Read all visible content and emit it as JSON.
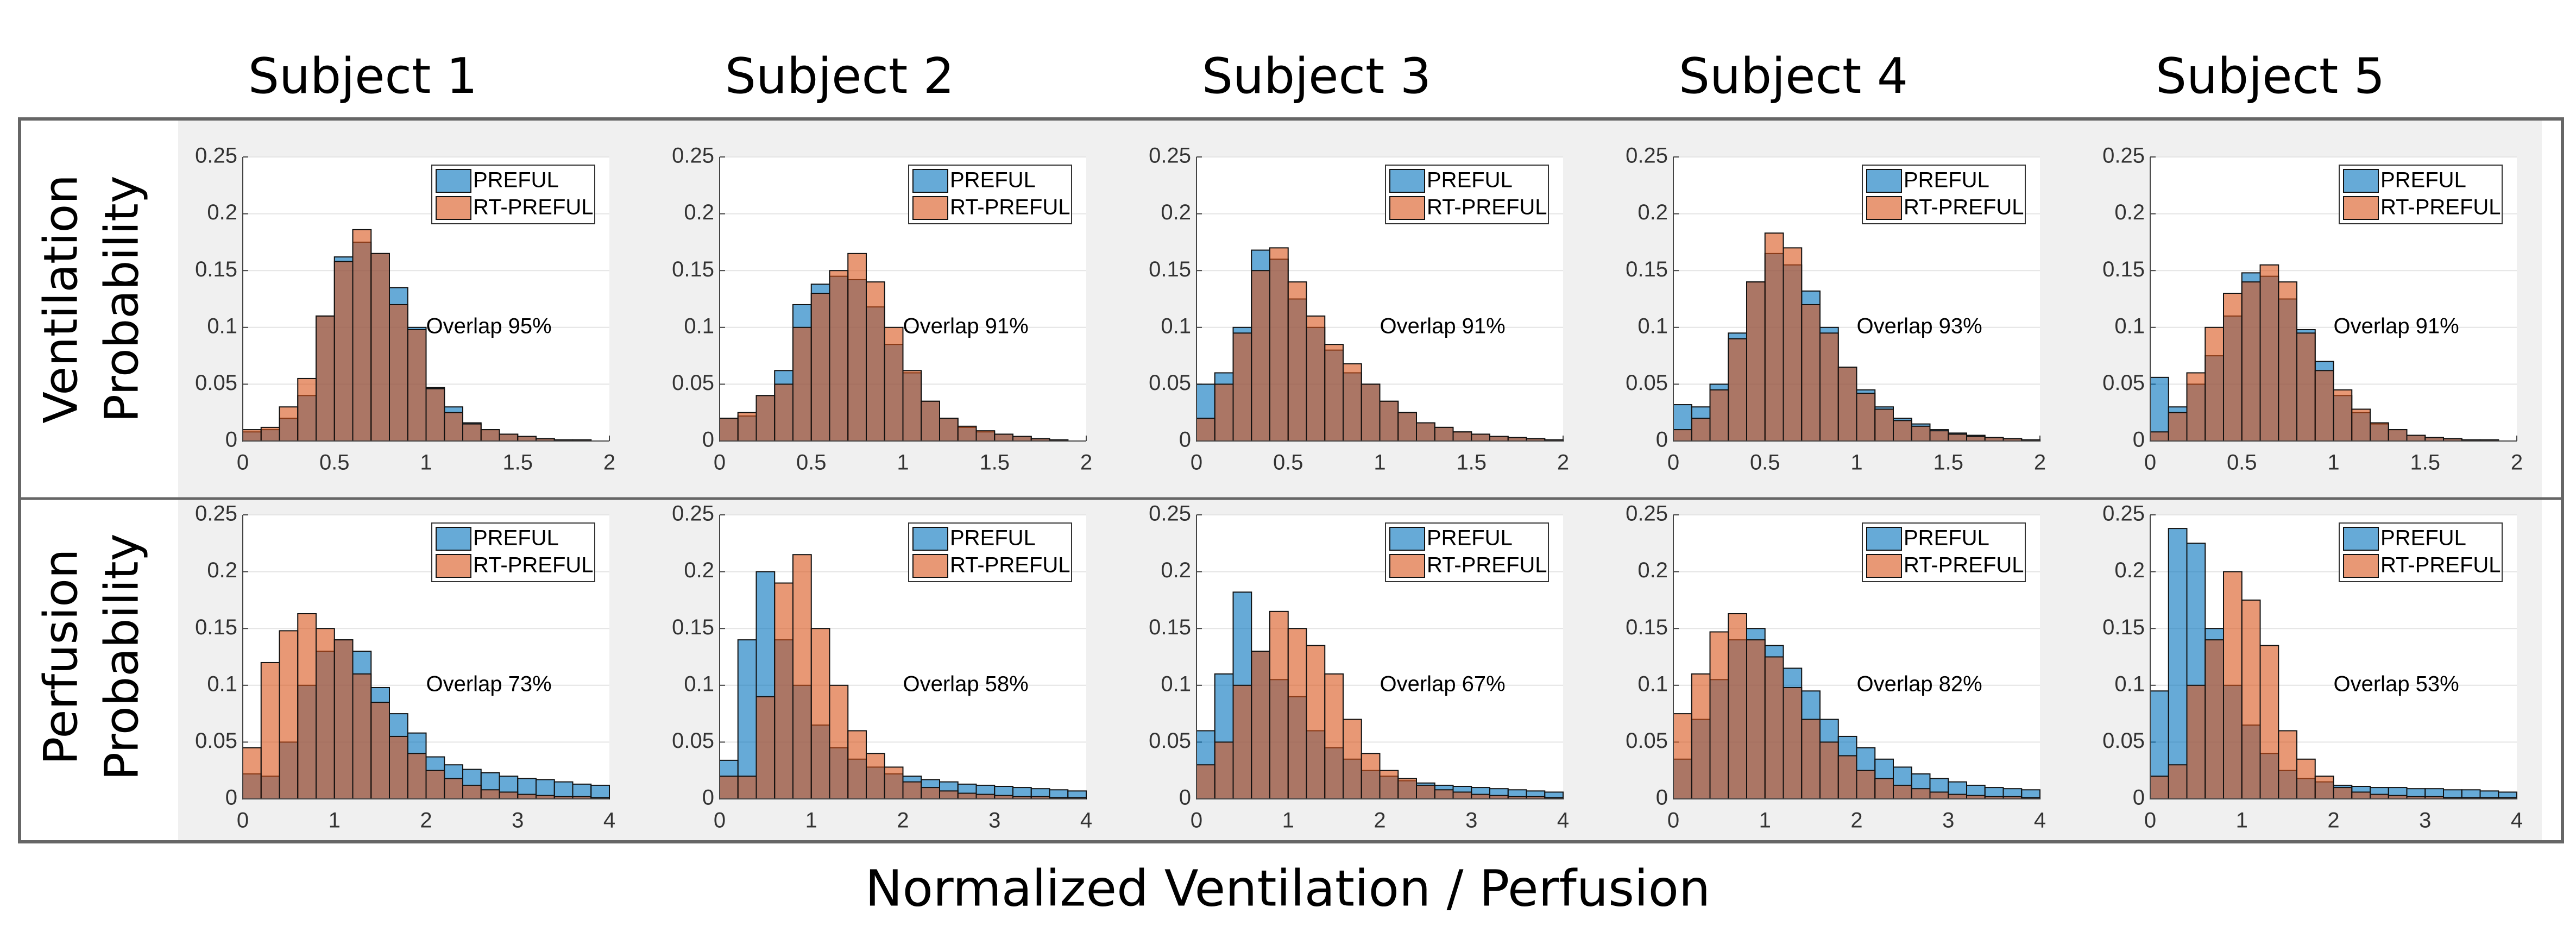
{
  "column_titles": [
    "Subject 1",
    "Subject 2",
    "Subject 3",
    "Subject 4",
    "Subject 5"
  ],
  "row_labels": [
    [
      "Ventilation",
      "Probability"
    ],
    [
      "Perfusion",
      "Probability"
    ]
  ],
  "xlabel": "Normalized Ventilation / Perfusion",
  "chart_data": [
    {
      "type": "histogram",
      "annotation": "Overlap 95%",
      "legend": "upper right",
      "grid": true,
      "bins": [
        0,
        0.1,
        0.2,
        0.3,
        0.4,
        0.5,
        0.6,
        0.7,
        0.8,
        0.9,
        1,
        1.1,
        1.2,
        1.3,
        1.4,
        1.5,
        1.6,
        1.7,
        1.8,
        1.9,
        2
      ],
      "xlim": [
        0,
        2
      ],
      "xticks": [
        0,
        0.5,
        1,
        1.5,
        2
      ],
      "ylim": [
        0,
        0.25
      ],
      "yticks": [
        0,
        0.05,
        0.1,
        0.15,
        0.2,
        0.25
      ],
      "series": [
        {
          "name": "PREFUL",
          "color": "#0072BD",
          "values": [
            0.008,
            0.01,
            0.02,
            0.04,
            0.11,
            0.162,
            0.175,
            0.165,
            0.135,
            0.1,
            0.047,
            0.03,
            0.016,
            0.01,
            0.006,
            0.004,
            0.002,
            0.001,
            0.001,
            0
          ]
        },
        {
          "name": "RT-PREFUL",
          "color": "#D95319",
          "values": [
            0.01,
            0.012,
            0.03,
            0.055,
            0.11,
            0.158,
            0.186,
            0.165,
            0.12,
            0.098,
            0.046,
            0.025,
            0.015,
            0.01,
            0.006,
            0.004,
            0.002,
            0.001,
            0.001,
            0
          ]
        }
      ]
    },
    {
      "type": "histogram",
      "annotation": "Overlap 91%",
      "legend": "upper right",
      "grid": true,
      "bins": [
        0,
        0.1,
        0.2,
        0.3,
        0.4,
        0.5,
        0.6,
        0.7,
        0.8,
        0.9,
        1,
        1.1,
        1.2,
        1.3,
        1.4,
        1.5,
        1.6,
        1.7,
        1.8,
        1.9,
        2
      ],
      "xlim": [
        0,
        2
      ],
      "xticks": [
        0,
        0.5,
        1,
        1.5,
        2
      ],
      "ylim": [
        0,
        0.25
      ],
      "yticks": [
        0,
        0.05,
        0.1,
        0.15,
        0.2,
        0.25
      ],
      "series": [
        {
          "name": "PREFUL",
          "color": "#0072BD",
          "values": [
            0.02,
            0.022,
            0.04,
            0.062,
            0.12,
            0.138,
            0.145,
            0.142,
            0.118,
            0.085,
            0.06,
            0.035,
            0.02,
            0.012,
            0.008,
            0.006,
            0.004,
            0.002,
            0.001,
            0
          ]
        },
        {
          "name": "RT-PREFUL",
          "color": "#D95319",
          "values": [
            0.02,
            0.025,
            0.04,
            0.05,
            0.1,
            0.13,
            0.15,
            0.165,
            0.14,
            0.1,
            0.062,
            0.035,
            0.02,
            0.013,
            0.009,
            0.006,
            0.004,
            0.002,
            0.001,
            0
          ]
        }
      ]
    },
    {
      "type": "histogram",
      "annotation": "Overlap 91%",
      "legend": "upper right",
      "grid": true,
      "bins": [
        0,
        0.1,
        0.2,
        0.3,
        0.4,
        0.5,
        0.6,
        0.7,
        0.8,
        0.9,
        1,
        1.1,
        1.2,
        1.3,
        1.4,
        1.5,
        1.6,
        1.7,
        1.8,
        1.9,
        2
      ],
      "xlim": [
        0,
        2
      ],
      "xticks": [
        0,
        0.5,
        1,
        1.5,
        2
      ],
      "ylim": [
        0,
        0.25
      ],
      "yticks": [
        0,
        0.05,
        0.1,
        0.15,
        0.2,
        0.25
      ],
      "series": [
        {
          "name": "PREFUL",
          "color": "#0072BD",
          "values": [
            0.05,
            0.06,
            0.1,
            0.168,
            0.16,
            0.125,
            0.1,
            0.08,
            0.06,
            0.05,
            0.035,
            0.025,
            0.016,
            0.012,
            0.008,
            0.006,
            0.004,
            0.003,
            0.002,
            0.001
          ]
        },
        {
          "name": "RT-PREFUL",
          "color": "#D95319",
          "values": [
            0.02,
            0.05,
            0.095,
            0.15,
            0.17,
            0.14,
            0.11,
            0.085,
            0.068,
            0.05,
            0.035,
            0.025,
            0.016,
            0.012,
            0.008,
            0.006,
            0.004,
            0.003,
            0.002,
            0.001
          ]
        }
      ]
    },
    {
      "type": "histogram",
      "annotation": "Overlap 93%",
      "legend": "upper right",
      "grid": true,
      "bins": [
        0,
        0.1,
        0.2,
        0.3,
        0.4,
        0.5,
        0.6,
        0.7,
        0.8,
        0.9,
        1,
        1.1,
        1.2,
        1.3,
        1.4,
        1.5,
        1.6,
        1.7,
        1.8,
        1.9,
        2
      ],
      "xlim": [
        0,
        2
      ],
      "xticks": [
        0,
        0.5,
        1,
        1.5,
        2
      ],
      "ylim": [
        0,
        0.25
      ],
      "yticks": [
        0,
        0.05,
        0.1,
        0.15,
        0.2,
        0.25
      ],
      "series": [
        {
          "name": "PREFUL",
          "color": "#0072BD",
          "values": [
            0.032,
            0.03,
            0.05,
            0.095,
            0.14,
            0.165,
            0.155,
            0.132,
            0.1,
            0.065,
            0.045,
            0.03,
            0.02,
            0.015,
            0.01,
            0.007,
            0.005,
            0.003,
            0.002,
            0.001
          ]
        },
        {
          "name": "RT-PREFUL",
          "color": "#D95319",
          "values": [
            0.01,
            0.02,
            0.045,
            0.09,
            0.14,
            0.183,
            0.17,
            0.12,
            0.095,
            0.065,
            0.042,
            0.028,
            0.018,
            0.013,
            0.009,
            0.006,
            0.004,
            0.003,
            0.002,
            0.001
          ]
        }
      ]
    },
    {
      "type": "histogram",
      "annotation": "Overlap 91%",
      "legend": "upper right",
      "grid": true,
      "bins": [
        0,
        0.1,
        0.2,
        0.3,
        0.4,
        0.5,
        0.6,
        0.7,
        0.8,
        0.9,
        1,
        1.1,
        1.2,
        1.3,
        1.4,
        1.5,
        1.6,
        1.7,
        1.8,
        1.9,
        2
      ],
      "xlim": [
        0,
        2
      ],
      "xticks": [
        0,
        0.5,
        1,
        1.5,
        2
      ],
      "ylim": [
        0,
        0.25
      ],
      "yticks": [
        0,
        0.05,
        0.1,
        0.15,
        0.2,
        0.25
      ],
      "series": [
        {
          "name": "PREFUL",
          "color": "#0072BD",
          "values": [
            0.056,
            0.03,
            0.05,
            0.075,
            0.11,
            0.148,
            0.145,
            0.125,
            0.098,
            0.07,
            0.04,
            0.025,
            0.015,
            0.01,
            0.005,
            0.003,
            0.002,
            0.001,
            0.001,
            0
          ]
        },
        {
          "name": "RT-PREFUL",
          "color": "#D95319",
          "values": [
            0.008,
            0.025,
            0.06,
            0.1,
            0.13,
            0.14,
            0.155,
            0.14,
            0.095,
            0.062,
            0.045,
            0.028,
            0.016,
            0.01,
            0.005,
            0.003,
            0.002,
            0.001,
            0.001,
            0
          ]
        }
      ]
    },
    {
      "type": "histogram",
      "annotation": "Overlap 73%",
      "legend": "upper right",
      "grid": true,
      "bins": [
        0,
        0.2,
        0.4,
        0.6,
        0.8,
        1,
        1.2,
        1.4,
        1.6,
        1.8,
        2,
        2.2,
        2.4,
        2.6,
        2.8,
        3,
        3.2,
        3.4,
        3.6,
        3.8,
        4
      ],
      "xlim": [
        0,
        4
      ],
      "xticks": [
        0,
        1,
        2,
        3,
        4
      ],
      "ylim": [
        0,
        0.25
      ],
      "yticks": [
        0,
        0.05,
        0.1,
        0.15,
        0.2,
        0.25
      ],
      "series": [
        {
          "name": "PREFUL",
          "color": "#0072BD",
          "values": [
            0.022,
            0.02,
            0.05,
            0.1,
            0.13,
            0.14,
            0.13,
            0.098,
            0.075,
            0.058,
            0.037,
            0.03,
            0.026,
            0.023,
            0.02,
            0.018,
            0.017,
            0.015,
            0.013,
            0.012
          ]
        },
        {
          "name": "RT-PREFUL",
          "color": "#D95319",
          "values": [
            0.045,
            0.12,
            0.148,
            0.163,
            0.15,
            0.14,
            0.11,
            0.085,
            0.055,
            0.04,
            0.025,
            0.018,
            0.012,
            0.008,
            0.006,
            0.004,
            0.003,
            0.002,
            0.002,
            0.001
          ]
        }
      ]
    },
    {
      "type": "histogram",
      "annotation": "Overlap 58%",
      "legend": "upper right",
      "grid": true,
      "bins": [
        0,
        0.2,
        0.4,
        0.6,
        0.8,
        1,
        1.2,
        1.4,
        1.6,
        1.8,
        2,
        2.2,
        2.4,
        2.6,
        2.8,
        3,
        3.2,
        3.4,
        3.6,
        3.8,
        4
      ],
      "xlim": [
        0,
        4
      ],
      "xticks": [
        0,
        1,
        2,
        3,
        4
      ],
      "ylim": [
        0,
        0.25
      ],
      "yticks": [
        0,
        0.05,
        0.1,
        0.15,
        0.2,
        0.25
      ],
      "series": [
        {
          "name": "PREFUL",
          "color": "#0072BD",
          "values": [
            0.034,
            0.14,
            0.2,
            0.14,
            0.1,
            0.065,
            0.045,
            0.035,
            0.028,
            0.022,
            0.02,
            0.017,
            0.015,
            0.013,
            0.012,
            0.011,
            0.01,
            0.009,
            0.008,
            0.007
          ]
        },
        {
          "name": "RT-PREFUL",
          "color": "#D95319",
          "values": [
            0.02,
            0.02,
            0.09,
            0.19,
            0.215,
            0.15,
            0.1,
            0.06,
            0.04,
            0.028,
            0.015,
            0.01,
            0.007,
            0.005,
            0.004,
            0.003,
            0.002,
            0.002,
            0.001,
            0.001
          ]
        }
      ]
    },
    {
      "type": "histogram",
      "annotation": "Overlap 67%",
      "legend": "upper right",
      "grid": true,
      "bins": [
        0,
        0.2,
        0.4,
        0.6,
        0.8,
        1,
        1.2,
        1.4,
        1.6,
        1.8,
        2,
        2.2,
        2.4,
        2.6,
        2.8,
        3,
        3.2,
        3.4,
        3.6,
        3.8,
        4
      ],
      "xlim": [
        0,
        4
      ],
      "xticks": [
        0,
        1,
        2,
        3,
        4
      ],
      "ylim": [
        0,
        0.25
      ],
      "yticks": [
        0,
        0.05,
        0.1,
        0.15,
        0.2,
        0.25
      ],
      "series": [
        {
          "name": "PREFUL",
          "color": "#0072BD",
          "values": [
            0.06,
            0.11,
            0.182,
            0.13,
            0.105,
            0.09,
            0.06,
            0.045,
            0.035,
            0.025,
            0.02,
            0.016,
            0.014,
            0.012,
            0.011,
            0.01,
            0.009,
            0.008,
            0.007,
            0.006
          ]
        },
        {
          "name": "RT-PREFUL",
          "color": "#D95319",
          "values": [
            0.03,
            0.05,
            0.1,
            0.13,
            0.165,
            0.15,
            0.135,
            0.11,
            0.07,
            0.04,
            0.025,
            0.018,
            0.012,
            0.008,
            0.006,
            0.004,
            0.003,
            0.002,
            0.002,
            0.001
          ]
        }
      ]
    },
    {
      "type": "histogram",
      "annotation": "Overlap 82%",
      "legend": "upper right",
      "grid": true,
      "bins": [
        0,
        0.2,
        0.4,
        0.6,
        0.8,
        1,
        1.2,
        1.4,
        1.6,
        1.8,
        2,
        2.2,
        2.4,
        2.6,
        2.8,
        3,
        3.2,
        3.4,
        3.6,
        3.8,
        4
      ],
      "xlim": [
        0,
        4
      ],
      "xticks": [
        0,
        1,
        2,
        3,
        4
      ],
      "ylim": [
        0,
        0.25
      ],
      "yticks": [
        0,
        0.05,
        0.1,
        0.15,
        0.2,
        0.25
      ],
      "series": [
        {
          "name": "PREFUL",
          "color": "#0072BD",
          "values": [
            0.035,
            0.07,
            0.105,
            0.14,
            0.15,
            0.135,
            0.115,
            0.095,
            0.07,
            0.055,
            0.045,
            0.035,
            0.028,
            0.022,
            0.018,
            0.015,
            0.012,
            0.01,
            0.009,
            0.008
          ]
        },
        {
          "name": "RT-PREFUL",
          "color": "#D95319",
          "values": [
            0.075,
            0.11,
            0.147,
            0.163,
            0.14,
            0.125,
            0.098,
            0.07,
            0.05,
            0.038,
            0.025,
            0.018,
            0.012,
            0.009,
            0.006,
            0.004,
            0.003,
            0.002,
            0.002,
            0.001
          ]
        }
      ]
    },
    {
      "type": "histogram",
      "annotation": "Overlap 53%",
      "legend": "upper right",
      "grid": true,
      "bins": [
        0,
        0.2,
        0.4,
        0.6,
        0.8,
        1,
        1.2,
        1.4,
        1.6,
        1.8,
        2,
        2.2,
        2.4,
        2.6,
        2.8,
        3,
        3.2,
        3.4,
        3.6,
        3.8,
        4
      ],
      "xlim": [
        0,
        4
      ],
      "xticks": [
        0,
        1,
        2,
        3,
        4
      ],
      "ylim": [
        0,
        0.25
      ],
      "yticks": [
        0,
        0.05,
        0.1,
        0.15,
        0.2,
        0.25
      ],
      "series": [
        {
          "name": "PREFUL",
          "color": "#0072BD",
          "values": [
            0.095,
            0.238,
            0.225,
            0.15,
            0.1,
            0.065,
            0.04,
            0.025,
            0.018,
            0.015,
            0.012,
            0.011,
            0.01,
            0.01,
            0.009,
            0.009,
            0.008,
            0.008,
            0.007,
            0.006
          ]
        },
        {
          "name": "RT-PREFUL",
          "color": "#D95319",
          "values": [
            0.02,
            0.03,
            0.1,
            0.14,
            0.2,
            0.175,
            0.135,
            0.06,
            0.035,
            0.02,
            0.01,
            0.006,
            0.004,
            0.003,
            0.002,
            0.002,
            0.001,
            0.001,
            0.001,
            0.001
          ]
        }
      ]
    }
  ]
}
